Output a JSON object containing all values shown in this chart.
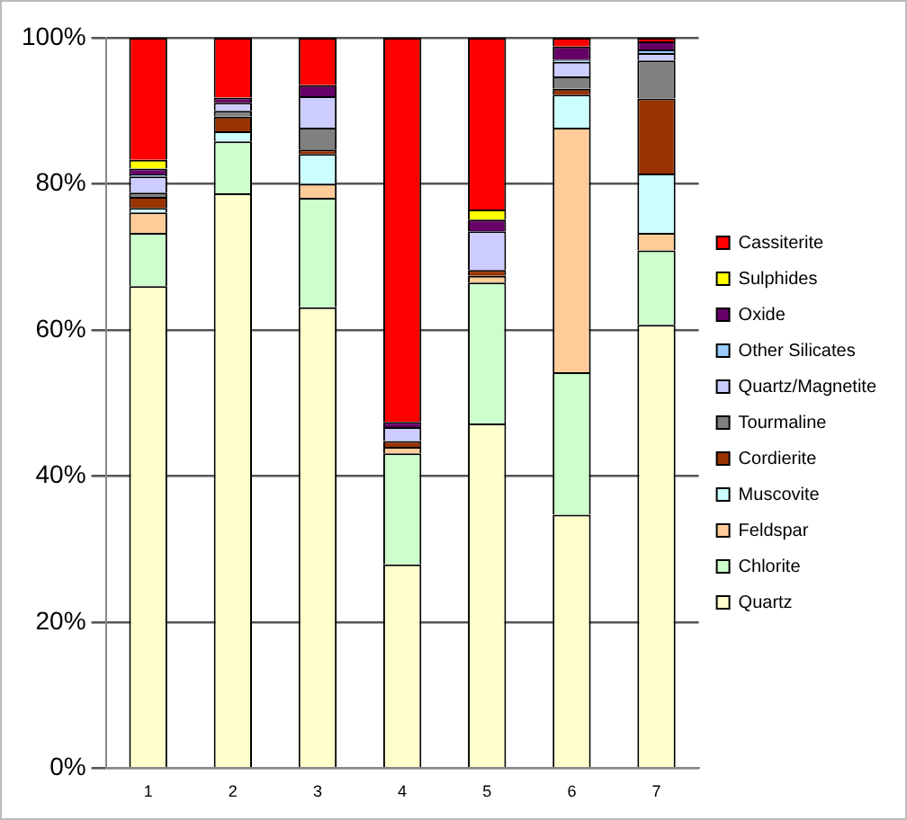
{
  "chart_data": {
    "type": "bar",
    "stacked": true,
    "categories": [
      "1",
      "2",
      "3",
      "4",
      "5",
      "6",
      "7"
    ],
    "ylim": [
      0,
      100
    ],
    "yticks": [
      {
        "value": 0,
        "label": "0%"
      },
      {
        "value": 20,
        "label": "20%"
      },
      {
        "value": 40,
        "label": "40%"
      },
      {
        "value": 60,
        "label": "60%"
      },
      {
        "value": 80,
        "label": "80%"
      },
      {
        "value": 100,
        "label": "100%"
      }
    ],
    "grid": "y",
    "legend": "right",
    "series": [
      {
        "name": "Quartz",
        "color": "#ffffcc",
        "values": [
          66.0,
          78.7,
          63.1,
          27.9,
          47.2,
          34.7,
          60.7
        ]
      },
      {
        "name": "Chlorite",
        "color": "#ccffcc",
        "values": [
          7.3,
          7.1,
          15.0,
          15.2,
          19.3,
          19.5,
          10.2
        ]
      },
      {
        "name": "Feldspar",
        "color": "#ffcc99",
        "values": [
          2.8,
          0,
          1.9,
          0.9,
          0.9,
          33.5,
          2.4
        ]
      },
      {
        "name": "Muscovite",
        "color": "#ccffff",
        "values": [
          0.6,
          1.4,
          4.1,
          0,
          0,
          4.5,
          8.1
        ]
      },
      {
        "name": "Cordierite",
        "color": "#993300",
        "values": [
          1.5,
          2.0,
          0.6,
          0.8,
          0.8,
          0.8,
          10.3
        ]
      },
      {
        "name": "Tourmaline",
        "color": "#808080",
        "values": [
          0.6,
          0.8,
          3.0,
          0,
          0,
          1.7,
          5.2
        ]
      },
      {
        "name": "Quartz/Magnetite",
        "color": "#ccccff",
        "values": [
          2.2,
          1.1,
          4.3,
          1.9,
          5.3,
          2.0,
          1.0
        ]
      },
      {
        "name": "Other Silicates",
        "color": "#99ccff",
        "values": [
          0.3,
          0,
          0,
          0,
          0,
          0.3,
          0.5
        ]
      },
      {
        "name": "Oxide",
        "color": "#660066",
        "values": [
          0.8,
          0.7,
          1.5,
          0.7,
          1.6,
          1.8,
          1.1
        ]
      },
      {
        "name": "Sulphides",
        "color": "#ffff00",
        "values": [
          1.2,
          0,
          0,
          0,
          1.4,
          0,
          0
        ]
      },
      {
        "name": "Cassiterite",
        "color": "#ff0000",
        "values": [
          16.7,
          8.2,
          6.5,
          52.6,
          23.5,
          1.2,
          0.5
        ]
      }
    ]
  }
}
